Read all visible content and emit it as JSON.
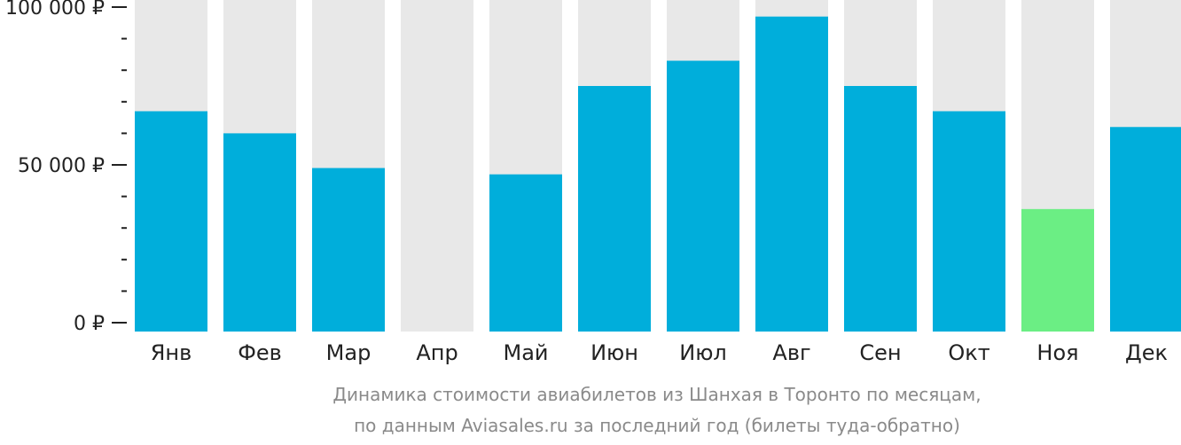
{
  "chart_data": {
    "type": "bar",
    "categories": [
      "Янв",
      "Фев",
      "Мар",
      "Апр",
      "Май",
      "Июн",
      "Июл",
      "Авг",
      "Сен",
      "Окт",
      "Ноя",
      "Дек"
    ],
    "values": [
      67000,
      60000,
      49000,
      null,
      47000,
      75000,
      83000,
      97000,
      75000,
      67000,
      36000,
      62000
    ],
    "ylim": [
      0,
      100000
    ],
    "yticks": [
      {
        "value": 0,
        "label": "0 ₽"
      },
      {
        "value": 50000,
        "label": "50 000 ₽"
      },
      {
        "value": 100000,
        "label": "100 000 ₽"
      }
    ],
    "minor_tick_step": 10000,
    "caption_line1": "Динамика стоимости авиабилетов из Шанхая в Торонто по месяцам,",
    "caption_line2": "по данным Aviasales.ru за последний год (билеты туда-обратно)",
    "highlight_category": "Ноя",
    "grid": false,
    "legend": "none"
  },
  "colors": {
    "bar": "#00AEDB",
    "bar_highlight": "#6BEE84",
    "bar_background": "#E8E8E8",
    "axis": "#222222",
    "caption": "#8A8A8A"
  }
}
